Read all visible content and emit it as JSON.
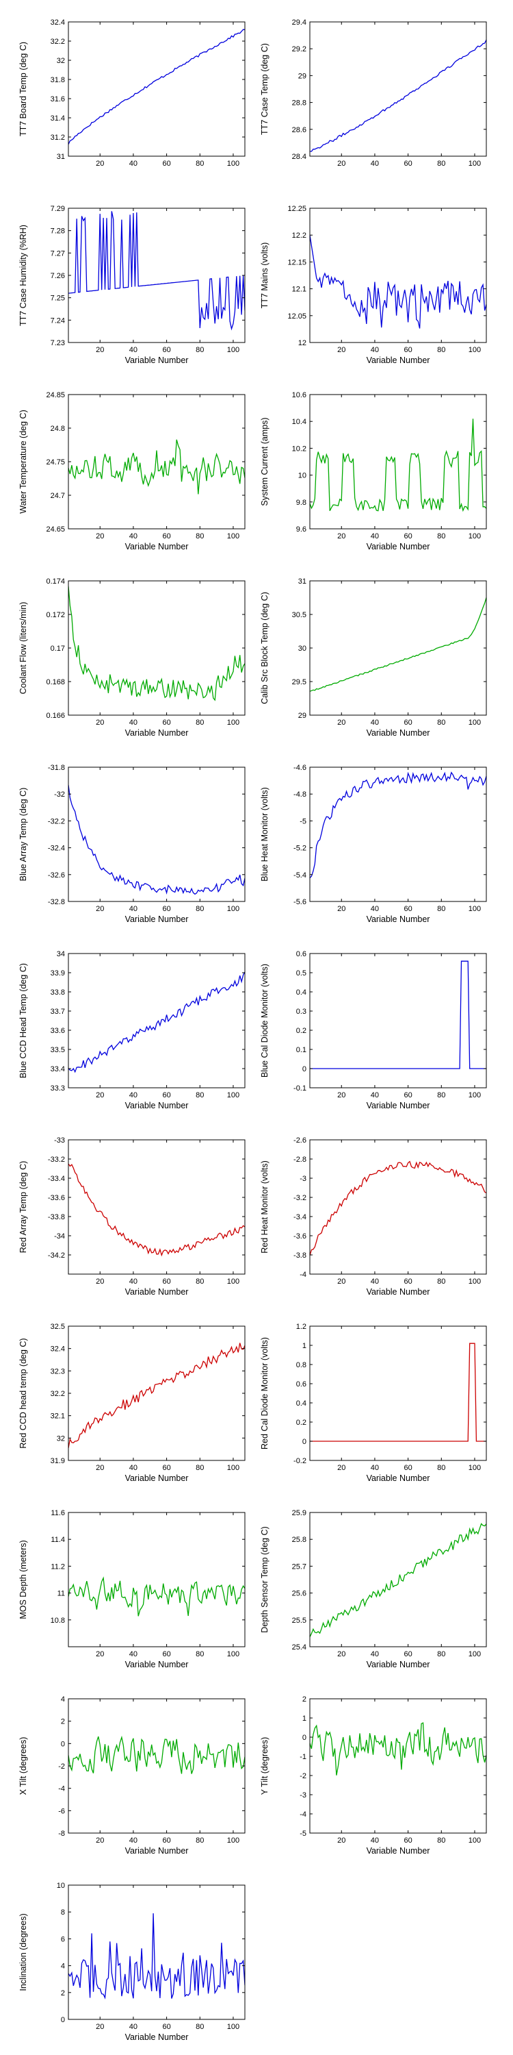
{
  "chart_data": [
    {
      "type": "line",
      "ylabel": "TT7 Board Temp (deg C)",
      "xlabel": "",
      "color": "#0000dd",
      "xlim": [
        1,
        107
      ],
      "ylim": [
        31,
        32.4
      ],
      "xticks": [
        20,
        40,
        60,
        80,
        100
      ],
      "yticks": [
        31,
        31.2,
        31.4,
        31.6,
        31.8,
        32,
        32.2,
        32.4
      ],
      "ytick_labels": [
        "31",
        "31.2",
        "31.4",
        "31.6",
        "31.8",
        "32",
        "32.2",
        "32.4"
      ],
      "shape": {
        "kind": "trend",
        "start": 31.13,
        "end": 32.32,
        "curve": 0.85,
        "noise": 0.012
      }
    },
    {
      "type": "line",
      "ylabel": "TT7 Case Temp (deg C)",
      "xlabel": "",
      "color": "#0000dd",
      "xlim": [
        1,
        107
      ],
      "ylim": [
        28.4,
        29.4
      ],
      "xticks": [
        20,
        40,
        60,
        80,
        100
      ],
      "yticks": [
        28.4,
        28.6,
        28.8,
        29,
        29.2,
        29.4
      ],
      "ytick_labels": [
        "28.4",
        "28.6",
        "28.8",
        "29",
        "29.2",
        "29.4"
      ],
      "shape": {
        "kind": "trend",
        "start": 28.44,
        "end": 29.26,
        "curve": 1.15,
        "noise": 0.01
      }
    },
    {
      "type": "line",
      "ylabel": "TT7 Case Humidity (%RH)",
      "xlabel": "Variable Number",
      "color": "#0000dd",
      "xlim": [
        1,
        107
      ],
      "ylim": [
        7.23,
        7.29
      ],
      "xticks": [
        20,
        40,
        60,
        80,
        100
      ],
      "yticks": [
        7.23,
        7.24,
        7.25,
        7.26,
        7.27,
        7.28,
        7.29
      ],
      "ytick_labels": [
        "7.23",
        "7.24",
        "7.25",
        "7.26",
        "7.27",
        "7.28",
        "7.29"
      ],
      "shape": {
        "kind": "humidity"
      }
    },
    {
      "type": "line",
      "ylabel": "TT7 Mains (volts)",
      "xlabel": "Variable Number",
      "color": "#0000dd",
      "xlim": [
        1,
        107
      ],
      "ylim": [
        12,
        12.25
      ],
      "xticks": [
        20,
        40,
        60,
        80,
        100
      ],
      "yticks": [
        12,
        12.05,
        12.1,
        12.15,
        12.2,
        12.25
      ],
      "ytick_labels": [
        "12",
        "12.05",
        "12.1",
        "12.15",
        "12.2",
        "12.25"
      ],
      "shape": {
        "kind": "mains"
      }
    },
    {
      "type": "line",
      "ylabel": "Water Temperature (deg C)",
      "xlabel": "Variable Number",
      "color": "#00aa00",
      "xlim": [
        1,
        107
      ],
      "ylim": [
        24.65,
        24.85
      ],
      "xticks": [
        20,
        40,
        60,
        80,
        100
      ],
      "yticks": [
        24.65,
        24.7,
        24.75,
        24.8,
        24.85
      ],
      "ytick_labels": [
        "24.65",
        "24.7",
        "24.75",
        "24.8",
        "24.85"
      ],
      "shape": {
        "kind": "noise",
        "base": 24.74,
        "amp": 0.03,
        "clamp": [
          24.69,
          24.8
        ]
      }
    },
    {
      "type": "line",
      "ylabel": "System Current (amps)",
      "xlabel": "Variable Number",
      "color": "#00aa00",
      "xlim": [
        1,
        107
      ],
      "ylim": [
        9.6,
        10.6
      ],
      "xticks": [
        20,
        40,
        60,
        80,
        100
      ],
      "yticks": [
        9.6,
        9.8,
        10,
        10.2,
        10.4,
        10.6
      ],
      "ytick_labels": [
        "9.6",
        "9.8",
        "10",
        "10.2",
        "10.4",
        "10.6"
      ],
      "shape": {
        "kind": "current"
      }
    },
    {
      "type": "line",
      "ylabel": "Coolant Flow (liters/min)",
      "xlabel": "Variable Number",
      "color": "#00aa00",
      "xlim": [
        1,
        107
      ],
      "ylim": [
        0.166,
        0.174
      ],
      "xticks": [
        20,
        40,
        60,
        80,
        100
      ],
      "yticks": [
        0.166,
        0.168,
        0.17,
        0.172,
        0.174
      ],
      "ytick_labels": [
        "0.166",
        "0.168",
        "0.17",
        "0.172",
        "0.174"
      ],
      "shape": {
        "kind": "coolant"
      }
    },
    {
      "type": "line",
      "ylabel": "Calib Src Block Temp (deg C)",
      "xlabel": "Variable Number",
      "color": "#00aa00",
      "xlim": [
        1,
        107
      ],
      "ylim": [
        29,
        31
      ],
      "xticks": [
        20,
        40,
        60,
        80,
        100
      ],
      "yticks": [
        29,
        29.5,
        30,
        30.5,
        31
      ],
      "ytick_labels": [
        "29",
        "29.5",
        "30",
        "30.5",
        "31"
      ],
      "shape": {
        "kind": "calib"
      }
    },
    {
      "type": "line",
      "ylabel": "Blue Array Temp (deg C)",
      "xlabel": "Variable Number",
      "color": "#0000dd",
      "xlim": [
        1,
        107
      ],
      "ylim": [
        -32.8,
        -31.8
      ],
      "xticks": [
        20,
        40,
        60,
        80,
        100
      ],
      "yticks": [
        -32.8,
        -32.6,
        -32.4,
        -32.2,
        -32,
        -31.8
      ],
      "ytick_labels": [
        "-32.8",
        "-32.6",
        "-32.4",
        "-32.2",
        "-32",
        "-31.8"
      ],
      "shape": {
        "kind": "decay",
        "start": -31.95,
        "floor": -32.72,
        "tau": 14,
        "noise": 0.03,
        "tail": 0.07
      }
    },
    {
      "type": "line",
      "ylabel": "Blue Heat Monitor (volts)",
      "xlabel": "Variable Number",
      "color": "#0000dd",
      "xlim": [
        1,
        107
      ],
      "ylim": [
        -5.6,
        -4.6
      ],
      "xticks": [
        20,
        40,
        60,
        80,
        100
      ],
      "yticks": [
        -5.6,
        -5.4,
        -5.2,
        -5,
        -4.8,
        -4.6
      ],
      "ytick_labels": [
        "-5.6",
        "-5.4",
        "-5.2",
        "-5",
        "-4.8",
        "-4.6"
      ],
      "shape": {
        "kind": "rise",
        "start": -5.35,
        "top": -4.67,
        "tau": 14,
        "noise": 0.035,
        "tail": -0.05
      }
    },
    {
      "type": "line",
      "ylabel": "Blue CCD Head Temp (deg C)",
      "xlabel": "Variable Number",
      "color": "#0000dd",
      "xlim": [
        1,
        107
      ],
      "ylim": [
        33.3,
        34
      ],
      "xticks": [
        20,
        40,
        60,
        80,
        100
      ],
      "yticks": [
        33.3,
        33.4,
        33.5,
        33.6,
        33.7,
        33.8,
        33.9,
        34
      ],
      "ytick_labels": [
        "33.3",
        "33.4",
        "33.5",
        "33.6",
        "33.7",
        "33.8",
        "33.9",
        "34"
      ],
      "shape": {
        "kind": "trend",
        "start": 33.38,
        "end": 33.88,
        "curve": 1,
        "noise": 0.025
      }
    },
    {
      "type": "line",
      "ylabel": "Blue Cal Diode Monitor (volts)",
      "xlabel": "Variable Number",
      "color": "#0000dd",
      "xlim": [
        1,
        107
      ],
      "ylim": [
        -0.1,
        0.6
      ],
      "xticks": [
        20,
        40,
        60,
        80,
        100
      ],
      "yticks": [
        -0.1,
        0,
        0.1,
        0.2,
        0.3,
        0.4,
        0.5,
        0.6
      ],
      "ytick_labels": [
        "-0.1",
        "0",
        "0.1",
        "0.2",
        "0.3",
        "0.4",
        "0.5",
        "0.6"
      ],
      "shape": {
        "kind": "spike",
        "base": 0,
        "peak": 0.56,
        "at": [
          92,
          96
        ]
      }
    },
    {
      "type": "line",
      "ylabel": "Red Array Temp (deg C)",
      "xlabel": "Variable Number",
      "color": "#cc0000",
      "xlim": [
        1,
        107
      ],
      "ylim": [
        -34.4,
        -33
      ],
      "xticks": [
        20,
        40,
        60,
        80,
        100
      ],
      "yticks": [
        -34.4,
        -34.2,
        -34,
        -33.8,
        -33.6,
        -33.4,
        -33.2,
        -33
      ],
      "ytick_labels": [
        "",
        "-34.2",
        "-34",
        "-33.8",
        "-33.6",
        "-33.4",
        "-33.2",
        "-33"
      ],
      "shape": {
        "kind": "valley",
        "start": -33.22,
        "min": -34.18,
        "minAt": 62,
        "end": -33.92,
        "noise": 0.035
      }
    },
    {
      "type": "line",
      "ylabel": "Red Heat Monitor (volts)",
      "xlabel": "Variable Number",
      "color": "#cc0000",
      "xlim": [
        1,
        107
      ],
      "ylim": [
        -4,
        -2.6
      ],
      "xticks": [
        20,
        40,
        60,
        80,
        100
      ],
      "yticks": [
        -4,
        -3.8,
        -3.6,
        -3.4,
        -3.2,
        -3,
        -2.8,
        -2.6
      ],
      "ytick_labels": [
        "-4",
        "-3.8",
        "-3.6",
        "-3.4",
        "-3.2",
        "-3",
        "-2.8",
        "-2.6"
      ],
      "shape": {
        "kind": "hill",
        "start": -3.78,
        "max": -2.86,
        "maxAt": 62,
        "end": -3.12,
        "noise": 0.035
      }
    },
    {
      "type": "line",
      "ylabel": "Red CCD head temp (deg C)",
      "xlabel": "Variable Number",
      "color": "#cc0000",
      "xlim": [
        1,
        107
      ],
      "ylim": [
        31.9,
        32.5
      ],
      "xticks": [
        20,
        40,
        60,
        80,
        100
      ],
      "yticks": [
        31.9,
        32,
        32.1,
        32.2,
        32.3,
        32.4,
        32.5
      ],
      "ytick_labels": [
        "31.9",
        "32",
        "32.1",
        "32.2",
        "32.3",
        "32.4",
        "32.5"
      ],
      "shape": {
        "kind": "trend",
        "start": 31.97,
        "end": 32.42,
        "curve": 0.8,
        "noise": 0.025
      }
    },
    {
      "type": "line",
      "ylabel": "Red Cal Diode Monitor (volts)",
      "xlabel": "Variable Number",
      "color": "#cc0000",
      "xlim": [
        1,
        107
      ],
      "ylim": [
        -0.2,
        1.2
      ],
      "xticks": [
        20,
        40,
        60,
        80,
        100
      ],
      "yticks": [
        -0.2,
        0,
        0.2,
        0.4,
        0.6,
        0.8,
        1,
        1.2
      ],
      "ytick_labels": [
        "-0.2",
        "0",
        "0.2",
        "0.4",
        "0.6",
        "0.8",
        "1",
        "1.2"
      ],
      "shape": {
        "kind": "spike",
        "base": 0,
        "peak": 1.02,
        "at": [
          97,
          100
        ]
      }
    },
    {
      "type": "line",
      "ylabel": "MOS Depth (meters)",
      "xlabel": "Variable Number",
      "color": "#00aa00",
      "xlim": [
        1,
        107
      ],
      "ylim": [
        10.6,
        11.6
      ],
      "xticks": [
        20,
        40,
        60,
        80,
        100
      ],
      "yticks": [
        10.6,
        10.8,
        11,
        11.2,
        11.4,
        11.6
      ],
      "ytick_labels": [
        "",
        "10.8",
        "11",
        "11.2",
        "11.4",
        "11.6"
      ],
      "shape": {
        "kind": "noise",
        "base": 11,
        "amp": 0.13,
        "clamp": [
          10.67,
          11.38
        ]
      }
    },
    {
      "type": "line",
      "ylabel": "Depth Sensor Temp (deg C)",
      "xlabel": "Variable Number",
      "color": "#00aa00",
      "xlim": [
        1,
        107
      ],
      "ylim": [
        25.4,
        25.9
      ],
      "xticks": [
        20,
        40,
        60,
        80,
        100
      ],
      "yticks": [
        25.4,
        25.5,
        25.6,
        25.7,
        25.8,
        25.9
      ],
      "ytick_labels": [
        "25.4",
        "25.5",
        "25.6",
        "25.7",
        "25.8",
        "25.9"
      ],
      "shape": {
        "kind": "trend",
        "start": 25.44,
        "end": 25.86,
        "curve": 1,
        "noise": 0.02
      }
    },
    {
      "type": "line",
      "ylabel": "X Tilt (degrees)",
      "xlabel": "Variable Number",
      "color": "#00aa00",
      "xlim": [
        1,
        107
      ],
      "ylim": [
        -8,
        4
      ],
      "xticks": [
        20,
        40,
        60,
        80,
        100
      ],
      "yticks": [
        -8,
        -6,
        -4,
        -2,
        0,
        2,
        4
      ],
      "ytick_labels": [
        "-8",
        "-6",
        "-4",
        "-2",
        "0",
        "2",
        "4"
      ],
      "shape": {
        "kind": "noise",
        "base": -1,
        "amp": 2.2,
        "clamp": [
          -6.8,
          3.9
        ]
      }
    },
    {
      "type": "line",
      "ylabel": "Y Tilt (degrees)",
      "xlabel": "Variable Number",
      "color": "#00aa00",
      "xlim": [
        1,
        107
      ],
      "ylim": [
        -5,
        2
      ],
      "xticks": [
        20,
        40,
        60,
        80,
        100
      ],
      "yticks": [
        -5,
        -4,
        -3,
        -2,
        -1,
        0,
        1,
        2
      ],
      "ytick_labels": [
        "-5",
        "-4",
        "-3",
        "-2",
        "-1",
        "0",
        "1",
        "2"
      ],
      "shape": {
        "kind": "noise",
        "base": -0.4,
        "amp": 1.2,
        "clamp": [
          -4.6,
          1.8
        ]
      }
    },
    {
      "type": "line",
      "ylabel": "Inclination (degrees)",
      "xlabel": "Variable Number",
      "color": "#0000dd",
      "xlim": [
        1,
        107
      ],
      "ylim": [
        0,
        10
      ],
      "xticks": [
        20,
        40,
        60,
        80,
        100
      ],
      "yticks": [
        0,
        2,
        4,
        6,
        8,
        10
      ],
      "ytick_labels": [
        "0",
        "2",
        "4",
        "6",
        "8",
        "10"
      ],
      "shape": {
        "kind": "incl",
        "base": 2.6,
        "amp": 1.5,
        "clamp": [
          0.4,
          8
        ]
      }
    }
  ]
}
